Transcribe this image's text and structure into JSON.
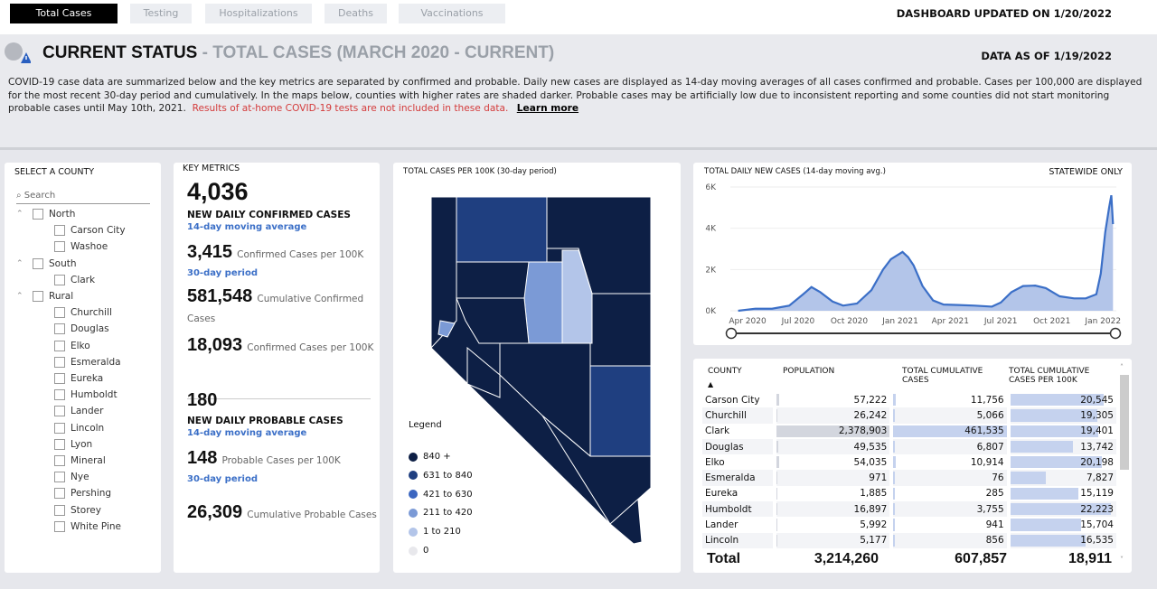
{
  "tabs": [
    {
      "label": "Total Cases",
      "active": true
    },
    {
      "label": "Testing"
    },
    {
      "label": "Hospitalizations"
    },
    {
      "label": "Deaths"
    },
    {
      "label": "Vaccinations"
    }
  ],
  "updated": "DASHBOARD UPDATED ON 1/20/2022",
  "header": {
    "title": "CURRENT STATUS",
    "separator": " - ",
    "subtitle": "TOTAL CASES (MARCH 2020 - CURRENT)",
    "data_as_of": "DATA AS OF 1/19/2022",
    "description": "COVID-19 case data are summarized below and the key metrics are separated by confirmed and probable. Daily new cases are displayed as 14-day moving averages of all cases confirmed and probable. Cases per 100,000 are displayed for the most recent 30-day period and cumulatively. In the maps below, counties with higher rates are shaded darker. Probable cases may be artificially low due to inconsistent reporting and some counties did not start monitoring probable cases until May 10th, 2021.",
    "warning": "Results of at-home COVID-19 tests are not included in these data.",
    "learn_more": "Learn more"
  },
  "slicer": {
    "title": "SELECT A COUNTY",
    "search_placeholder": "Search",
    "groups": [
      {
        "label": "North",
        "items": [
          "Carson City",
          "Washoe"
        ]
      },
      {
        "label": "South",
        "items": [
          "Clark"
        ]
      },
      {
        "label": "Rural",
        "items": [
          "Churchill",
          "Douglas",
          "Elko",
          "Esmeralda",
          "Eureka",
          "Humboldt",
          "Lander",
          "Lincoln",
          "Lyon",
          "Mineral",
          "Nye",
          "Pershing",
          "Storey",
          "White Pine"
        ]
      }
    ]
  },
  "metrics": {
    "title": "KEY METRICS",
    "confirmed_daily": "4,036",
    "confirmed_daily_label": "NEW DAILY CONFIRMED CASES",
    "moving_avg": "14-day moving average",
    "confirmed_30d": "3,415",
    "confirmed_30d_label": "Confirmed Cases per 100K",
    "period": "30-day period",
    "confirmed_cum": "581,548",
    "confirmed_cum_label": "Cumulative Confirmed Cases",
    "confirmed_cum_100k": "18,093",
    "confirmed_cum_100k_label": "Confirmed Cases per 100K",
    "probable_daily": "180",
    "probable_daily_label": "NEW DAILY PROBABLE CASES",
    "probable_30d": "148",
    "probable_30d_label": "Probable Cases per 100K",
    "probable_cum": "26,309",
    "probable_cum_label": "Cumulative Probable Cases"
  },
  "map": {
    "title": "TOTAL CASES PER 100K (30-day period)",
    "legend_title": "Legend",
    "legend": [
      {
        "label": "840 +",
        "color": "#0d1f45"
      },
      {
        "label": "631 to 840",
        "color": "#1f3f80"
      },
      {
        "label": "421 to 630",
        "color": "#3c66c0"
      },
      {
        "label": "211 to 420",
        "color": "#7b9ad6"
      },
      {
        "label": "1 to 210",
        "color": "#b3c5e9"
      },
      {
        "label": "0",
        "color": "#e8e8ec"
      }
    ]
  },
  "chart_data": {
    "type": "area",
    "title": "TOTAL DAILY NEW CASES (14-day moving avg.)",
    "note": "STATEWIDE ONLY",
    "yticks": [
      "6K",
      "4K",
      "2K",
      "0K"
    ],
    "ylim": [
      0,
      6000
    ],
    "xlim": [
      "2020-03-01",
      "2022-01-25"
    ],
    "xticks": [
      {
        "date": "2020-04-01",
        "label": "Apr 2020"
      },
      {
        "date": "2020-07-01",
        "label": "Jul 2020"
      },
      {
        "date": "2020-10-01",
        "label": "Oct 2020"
      },
      {
        "date": "2021-01-01",
        "label": "Jan 2021"
      },
      {
        "date": "2021-04-01",
        "label": "Apr 2021"
      },
      {
        "date": "2021-07-01",
        "label": "Jul 2021"
      },
      {
        "date": "2021-10-01",
        "label": "Oct 2021"
      },
      {
        "date": "2022-01-01",
        "label": "Jan 2022"
      }
    ],
    "color": "#3b6fc7",
    "points": [
      [
        "2020-03-15",
        0
      ],
      [
        "2020-04-15",
        100
      ],
      [
        "2020-05-15",
        100
      ],
      [
        "2020-06-15",
        250
      ],
      [
        "2020-07-10",
        800
      ],
      [
        "2020-07-25",
        1150
      ],
      [
        "2020-08-10",
        900
      ],
      [
        "2020-09-01",
        450
      ],
      [
        "2020-09-20",
        250
      ],
      [
        "2020-10-15",
        350
      ],
      [
        "2020-11-10",
        1000
      ],
      [
        "2020-12-01",
        2000
      ],
      [
        "2020-12-15",
        2500
      ],
      [
        "2021-01-05",
        2850
      ],
      [
        "2021-01-15",
        2600
      ],
      [
        "2021-01-25",
        2200
      ],
      [
        "2021-02-10",
        1200
      ],
      [
        "2021-03-01",
        500
      ],
      [
        "2021-03-20",
        300
      ],
      [
        "2021-04-15",
        280
      ],
      [
        "2021-05-15",
        250
      ],
      [
        "2021-06-15",
        200
      ],
      [
        "2021-07-01",
        400
      ],
      [
        "2021-07-20",
        900
      ],
      [
        "2021-08-10",
        1200
      ],
      [
        "2021-09-01",
        1220
      ],
      [
        "2021-09-20",
        1100
      ],
      [
        "2021-10-15",
        700
      ],
      [
        "2021-11-10",
        600
      ],
      [
        "2021-12-01",
        600
      ],
      [
        "2021-12-20",
        800
      ],
      [
        "2021-12-28",
        1800
      ],
      [
        "2022-01-05",
        3800
      ],
      [
        "2022-01-12",
        5000
      ],
      [
        "2022-01-16",
        5600
      ],
      [
        "2022-01-19",
        4200
      ]
    ]
  },
  "table": {
    "headers": [
      "COUNTY",
      "POPULATION",
      "TOTAL CUMULATIVE CASES",
      "TOTAL CUMULATIVE CASES PER 100K"
    ],
    "rows": [
      [
        "Carson City",
        "57,222",
        "11,756",
        "20,545"
      ],
      [
        "Churchill",
        "26,242",
        "5,066",
        "19,305"
      ],
      [
        "Clark",
        "2,378,903",
        "461,535",
        "19,401"
      ],
      [
        "Douglas",
        "49,535",
        "6,807",
        "13,742"
      ],
      [
        "Elko",
        "54,035",
        "10,914",
        "20,198"
      ],
      [
        "Esmeralda",
        "971",
        "76",
        "7,827"
      ],
      [
        "Eureka",
        "1,885",
        "285",
        "15,119"
      ],
      [
        "Humboldt",
        "16,897",
        "3,755",
        "22,223"
      ],
      [
        "Lander",
        "5,992",
        "941",
        "15,704"
      ],
      [
        "Lincoln",
        "5,177",
        "856",
        "16,535"
      ]
    ],
    "total": [
      "Total",
      "3,214,260",
      "607,857",
      "18,911"
    ]
  }
}
